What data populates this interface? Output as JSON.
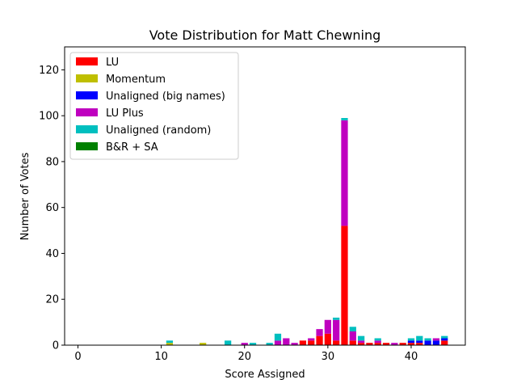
{
  "chart_data": {
    "type": "bar",
    "stacked": true,
    "title": "Vote Distribution for Matt Chewning",
    "xlabel": "Score Assigned",
    "ylabel": "Number of Votes",
    "xlim": [
      -1.6,
      46.5
    ],
    "ylim": [
      0,
      130
    ],
    "xticks": [
      0,
      10,
      20,
      30,
      40
    ],
    "yticks": [
      0,
      20,
      40,
      60,
      80,
      100,
      120
    ],
    "grid": false,
    "legend_position": "top-left",
    "x": [
      11,
      15,
      18,
      20,
      21,
      23,
      24,
      25,
      26,
      27,
      28,
      29,
      30,
      31,
      32,
      33,
      34,
      35,
      36,
      37,
      38,
      39,
      40,
      41,
      42,
      43,
      44
    ],
    "series": [
      {
        "name": "LU",
        "color": "#ff0000",
        "values": [
          0,
          0,
          0,
          0,
          0,
          0,
          0,
          0,
          0,
          2,
          2,
          4,
          5,
          2,
          52,
          2,
          1,
          1,
          1,
          1,
          0,
          1,
          1,
          1,
          0,
          0,
          2
        ]
      },
      {
        "name": "Momentum",
        "color": "#bfbf00",
        "values": [
          1,
          1,
          0,
          0,
          0,
          0,
          0,
          0,
          0,
          0,
          0,
          0,
          0,
          0,
          0,
          0,
          0,
          0,
          0,
          0,
          0,
          0,
          0,
          0,
          0,
          0,
          0
        ]
      },
      {
        "name": "Unaligned (big names)",
        "color": "#0000ff",
        "values": [
          0,
          0,
          0,
          0,
          0,
          0,
          0,
          0,
          0,
          0,
          0,
          0,
          0,
          0,
          0,
          0,
          0,
          0,
          0,
          0,
          0,
          0,
          1,
          1,
          2,
          2,
          1
        ]
      },
      {
        "name": "LU Plus",
        "color": "#bf00bf",
        "values": [
          0,
          0,
          0,
          1,
          0,
          0,
          2,
          3,
          1,
          0,
          1,
          3,
          6,
          9,
          46,
          4,
          1,
          0,
          1,
          0,
          1,
          0,
          0,
          0,
          0,
          1,
          0
        ]
      },
      {
        "name": "Unaligned (random)",
        "color": "#00bfbf",
        "values": [
          1,
          0,
          2,
          0,
          1,
          1,
          3,
          0,
          0,
          0,
          0,
          0,
          0,
          1,
          1,
          2,
          2,
          0,
          1,
          0,
          0,
          0,
          1,
          2,
          1,
          0,
          1
        ]
      },
      {
        "name": "B&R + SA",
        "color": "#008000",
        "values": [
          0,
          0,
          0,
          0,
          0,
          0,
          0,
          0,
          0,
          0,
          0,
          0,
          0,
          0,
          0,
          0,
          0,
          0,
          0,
          0,
          0,
          0,
          0,
          0,
          0,
          0,
          0
        ]
      }
    ]
  }
}
